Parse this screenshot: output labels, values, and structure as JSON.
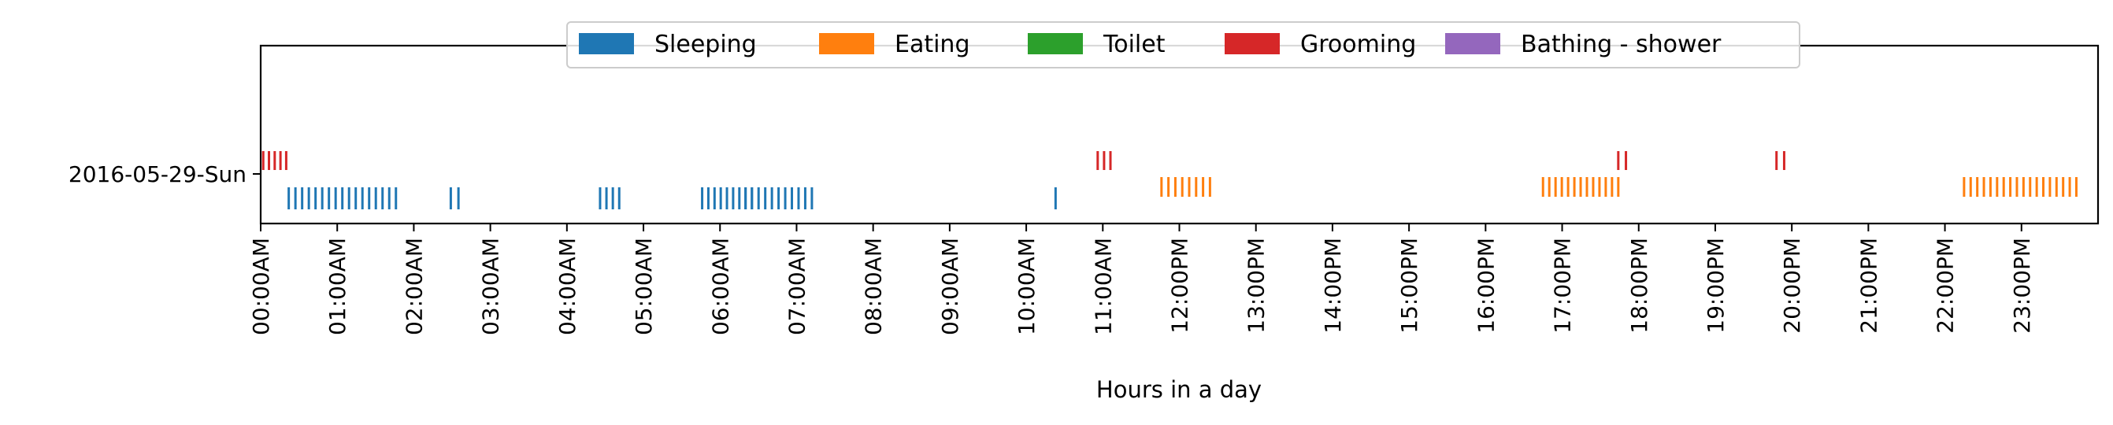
{
  "chart_data": {
    "type": "event-strip",
    "xlabel": "Hours in a day",
    "xlim_hours": [
      0,
      24
    ],
    "x_tick_labels": [
      "00:00AM",
      "01:00AM",
      "02:00AM",
      "03:00AM",
      "04:00AM",
      "05:00AM",
      "06:00AM",
      "07:00AM",
      "08:00AM",
      "09:00AM",
      "10:00AM",
      "11:00AM",
      "12:00PM",
      "13:00PM",
      "14:00PM",
      "15:00PM",
      "16:00PM",
      "17:00PM",
      "18:00PM",
      "19:00PM",
      "20:00PM",
      "21:00PM",
      "22:00PM",
      "23:00PM"
    ],
    "y_categories": [
      "2016-05-29-Sun"
    ],
    "legend_position": "top-center",
    "grid": false,
    "series": [
      {
        "name": "Sleeping",
        "color": "#1f77b4",
        "events": [
          {
            "start": "00:22",
            "end": "01:46"
          },
          {
            "start": "02:29",
            "end": "02:35"
          },
          {
            "start": "04:26",
            "end": "04:41"
          },
          {
            "start": "05:46",
            "end": "06:20"
          },
          {
            "start": "06:20",
            "end": "06:25"
          },
          {
            "start": "06:25",
            "end": "07:12"
          },
          {
            "start": "10:23",
            "end": "10:24"
          }
        ]
      },
      {
        "name": "Eating",
        "color": "#ff7f0e",
        "events": [
          {
            "start": "11:46",
            "end": "12:24"
          },
          {
            "start": "16:45",
            "end": "17:44"
          },
          {
            "start": "22:15",
            "end": "23:43"
          }
        ]
      },
      {
        "name": "Toilet",
        "color": "#2ca02c",
        "events": []
      },
      {
        "name": "Grooming",
        "color": "#d62728",
        "events": [
          {
            "start": "00:02",
            "end": "00:20"
          },
          {
            "start": "10:56",
            "end": "11:06"
          },
          {
            "start": "17:44",
            "end": "17:50"
          },
          {
            "start": "19:48",
            "end": "19:54"
          }
        ]
      },
      {
        "name": "Bathing - shower",
        "color": "#9467bd",
        "events": []
      }
    ]
  }
}
